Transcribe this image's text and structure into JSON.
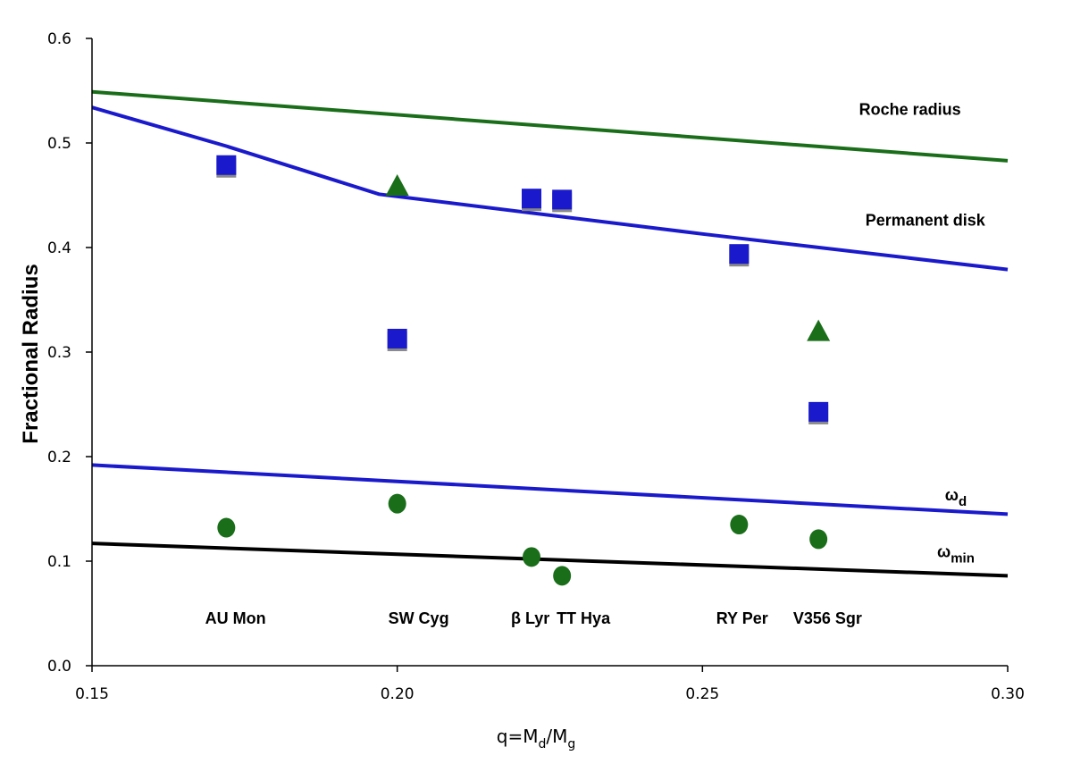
{
  "chart_data": {
    "type": "scatter",
    "title": "",
    "xlabel_parts": {
      "main": "q=M",
      "sub1": "d",
      "slash": "/M",
      "sub2": "g"
    },
    "ylabel": "Fractional Radius",
    "xlim": [
      0.15,
      0.3
    ],
    "ylim": [
      0.0,
      0.6
    ],
    "x_ticks": [
      "0.15",
      "0.20",
      "0.25",
      "0.30"
    ],
    "y_ticks": [
      "0.0",
      "0.1",
      "0.2",
      "0.3",
      "0.4",
      "0.5",
      "0.6"
    ],
    "grid": false,
    "colors": {
      "blue": "#1a1acc",
      "green": "#1a6e1a",
      "black": "#000000",
      "square_shadow": "#888888"
    },
    "lines": [
      {
        "name": "Roche radius",
        "color": "green",
        "points": [
          [
            0.15,
            0.549
          ],
          [
            0.3,
            0.483
          ]
        ]
      },
      {
        "name": "Permanent disk",
        "color": "blue",
        "points": [
          [
            0.15,
            0.534
          ],
          [
            0.172,
            0.497
          ],
          [
            0.197,
            0.451
          ],
          [
            0.25,
            0.413
          ],
          [
            0.3,
            0.379
          ]
        ]
      },
      {
        "name": "omega_d",
        "color": "blue",
        "points": [
          [
            0.15,
            0.192
          ],
          [
            0.3,
            0.145
          ]
        ]
      },
      {
        "name": "omega_min",
        "color": "black",
        "points": [
          [
            0.15,
            0.117
          ],
          [
            0.3,
            0.086
          ]
        ]
      }
    ],
    "line_labels": [
      {
        "text": "Roche radius",
        "x": 0.284,
        "y": 0.527,
        "type": "text"
      },
      {
        "text": "Permanent disk",
        "x": 0.2865,
        "y": 0.421,
        "type": "text"
      },
      {
        "text": "ω",
        "sub": "d",
        "x": 0.2915,
        "y": 0.158,
        "type": "omega"
      },
      {
        "text": "ω",
        "sub": "min",
        "x": 0.2915,
        "y": 0.104,
        "type": "omega"
      }
    ],
    "series": [
      {
        "name": "squares",
        "marker": "square",
        "color": "blue",
        "points": [
          [
            0.172,
            0.478
          ],
          [
            0.2,
            0.312
          ],
          [
            0.222,
            0.446
          ],
          [
            0.227,
            0.445
          ],
          [
            0.256,
            0.393
          ],
          [
            0.269,
            0.242
          ]
        ]
      },
      {
        "name": "triangles",
        "marker": "triangle",
        "color": "green",
        "points": [
          [
            0.2,
            0.459
          ],
          [
            0.269,
            0.32
          ]
        ]
      },
      {
        "name": "circles",
        "marker": "circle",
        "color": "green",
        "points": [
          [
            0.172,
            0.132
          ],
          [
            0.2,
            0.155
          ],
          [
            0.222,
            0.104
          ],
          [
            0.227,
            0.086
          ],
          [
            0.256,
            0.135
          ],
          [
            0.269,
            0.121
          ]
        ]
      }
    ],
    "annotations": [
      {
        "text": "AU Mon",
        "x": 0.1735,
        "y": 0.04
      },
      {
        "text": "SW Cyg",
        "x": 0.2035,
        "y": 0.04
      },
      {
        "text": "β Lyr",
        "x": 0.2218,
        "y": 0.04
      },
      {
        "text": "TT Hya",
        "x": 0.2305,
        "y": 0.04
      },
      {
        "text": "RY Per",
        "x": 0.2565,
        "y": 0.04
      },
      {
        "text": "V356 Sgr",
        "x": 0.2705,
        "y": 0.04
      }
    ]
  }
}
